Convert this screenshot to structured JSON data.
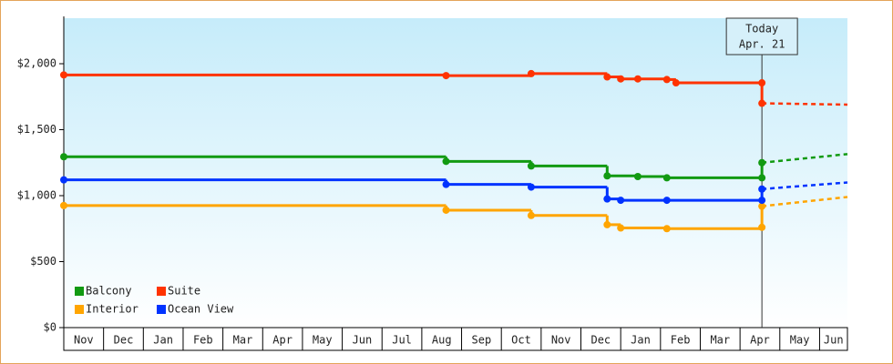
{
  "chart_data": {
    "type": "step",
    "categories": [
      "Nov",
      "Dec",
      "Jan",
      "Feb",
      "Mar",
      "Apr",
      "May",
      "Jun",
      "Jul",
      "Aug",
      "Sep",
      "Oct",
      "Nov",
      "Dec",
      "Jan",
      "Feb",
      "Mar",
      "Apr",
      "May",
      "Jun"
    ],
    "xlim": [
      0,
      19.7
    ],
    "ylim": [
      0,
      2345
    ],
    "yticks": [
      {
        "value": 0,
        "label": "$0"
      },
      {
        "value": 500,
        "label": "$500"
      },
      {
        "value": 1000,
        "label": "$1,000"
      },
      {
        "value": 1500,
        "label": "$1,500"
      },
      {
        "value": 2000,
        "label": "$2,000"
      }
    ],
    "series": [
      {
        "name": "Balcony",
        "color": "#129a12",
        "x": [
          0,
          9.61,
          11.75,
          13.66,
          14.43,
          15.16,
          17.55,
          17.55
        ],
        "values": [
          1295,
          1260,
          1225,
          1150,
          1145,
          1135,
          1135,
          1250
        ],
        "projection": {
          "x": [
            17.55,
            19.7
          ],
          "values": [
            1250,
            1315
          ]
        }
      },
      {
        "name": "Suite",
        "color": "#ff3300",
        "x": [
          0,
          9.61,
          11.75,
          13.66,
          14.0,
          14.43,
          15.16,
          15.39,
          17.55,
          17.55
        ],
        "values": [
          1915,
          1910,
          1925,
          1900,
          1885,
          1885,
          1880,
          1855,
          1855,
          1700
        ],
        "projection": {
          "x": [
            17.55,
            19.7
          ],
          "values": [
            1700,
            1690
          ]
        }
      },
      {
        "name": "Interior",
        "color": "#ffa500",
        "x": [
          0,
          9.61,
          11.75,
          13.66,
          14.0,
          15.16,
          17.55,
          17.55
        ],
        "values": [
          925,
          890,
          850,
          780,
          755,
          750,
          760,
          920
        ],
        "projection": {
          "x": [
            17.55,
            19.7
          ],
          "values": [
            920,
            990
          ]
        }
      },
      {
        "name": "Ocean View",
        "color": "#0033ff",
        "x": [
          0,
          9.61,
          11.75,
          13.66,
          14.0,
          15.16,
          17.55,
          17.55
        ],
        "values": [
          1120,
          1085,
          1065,
          975,
          965,
          965,
          965,
          1050
        ],
        "projection": {
          "x": [
            17.55,
            19.7
          ],
          "values": [
            1050,
            1100
          ]
        }
      }
    ],
    "annotation": {
      "x": 17.55,
      "text": [
        "Today",
        "Apr. 21"
      ]
    }
  }
}
